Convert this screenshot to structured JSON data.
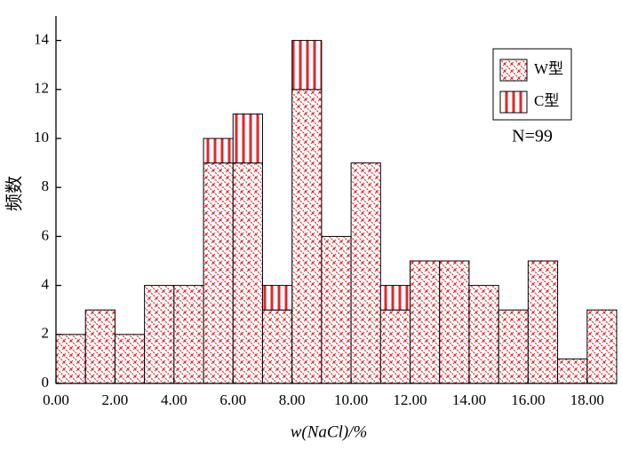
{
  "chart_data": {
    "type": "histogram",
    "bins": [
      0,
      1,
      2,
      3,
      4,
      5,
      6,
      7,
      8,
      9,
      10,
      11,
      12,
      13,
      14,
      15,
      16,
      17,
      18,
      19
    ],
    "series": [
      {
        "name": "W型",
        "color": "#e3262b",
        "hatch": "cross",
        "values": [
          2,
          3,
          2,
          4,
          4,
          9,
          9,
          3,
          12,
          6,
          9,
          3,
          5,
          5,
          4,
          3,
          5,
          1,
          3
        ]
      },
      {
        "name": "C型",
        "color": "#e3262b",
        "hatch": "vertical",
        "values": [
          0,
          0,
          0,
          0,
          0,
          1,
          2,
          1,
          2,
          0,
          0,
          1,
          0,
          0,
          0,
          0,
          0,
          0,
          0
        ]
      }
    ],
    "xlim": [
      0,
      19
    ],
    "xticks": [
      {
        "value": 0,
        "label": "0.00"
      },
      {
        "value": 2,
        "label": "2.00"
      },
      {
        "value": 4,
        "label": "4.00"
      },
      {
        "value": 6,
        "label": "6.00"
      },
      {
        "value": 8,
        "label": "8.00"
      },
      {
        "value": 10,
        "label": "10.00"
      },
      {
        "value": 12,
        "label": "12.00"
      },
      {
        "value": 14,
        "label": "14.00"
      },
      {
        "value": 16,
        "label": "16.00"
      },
      {
        "value": 18,
        "label": "18.00"
      }
    ],
    "ylim": [
      0,
      15
    ],
    "yticks": [
      0,
      2,
      4,
      6,
      8,
      10,
      12,
      14
    ],
    "x_label": "w(NaCl)/%",
    "y_label": "频数",
    "annotation": "N=99",
    "legend": "upper right"
  }
}
